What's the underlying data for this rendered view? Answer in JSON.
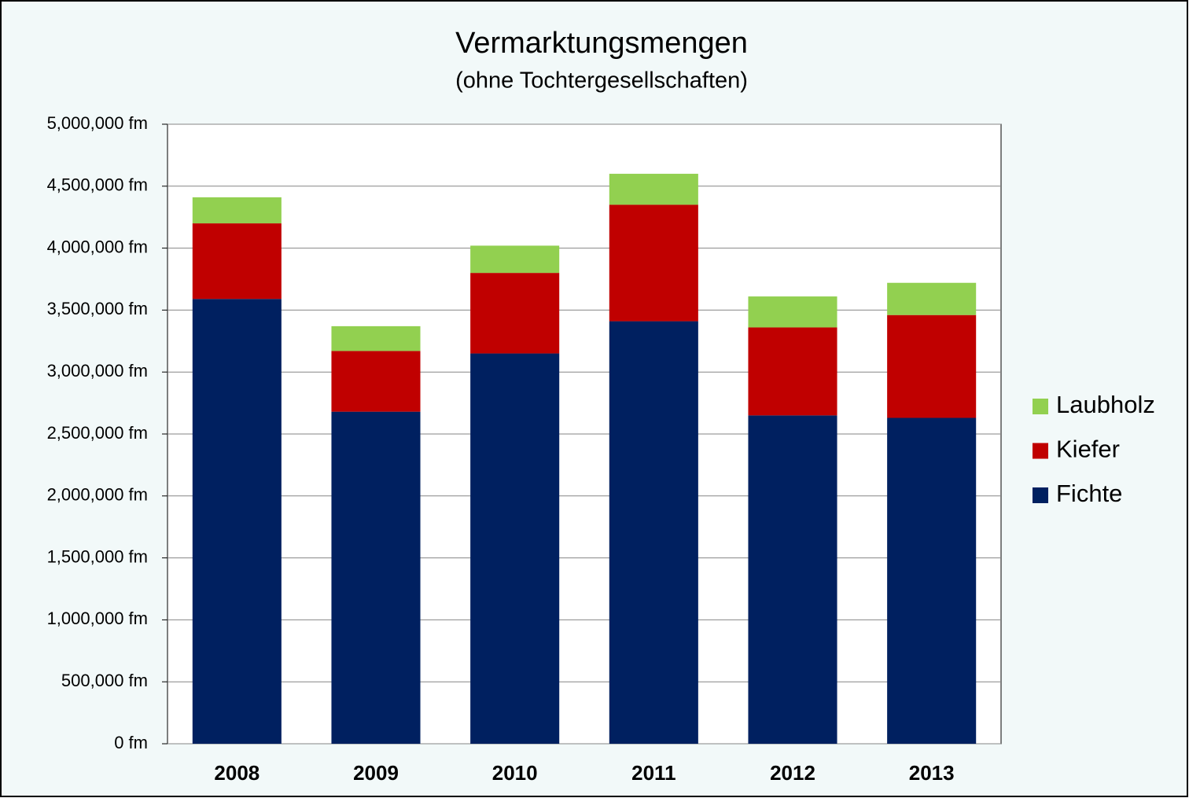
{
  "chart_data": {
    "type": "stacked_bar",
    "title": "Vermarktungsmengen",
    "subtitle": "(ohne Tochtergesellschaften)",
    "categories": [
      "2008",
      "2009",
      "2010",
      "2011",
      "2012",
      "2013"
    ],
    "series": [
      {
        "name": "Fichte",
        "color": "#002060",
        "values": [
          3590000,
          2680000,
          3150000,
          3410000,
          2650000,
          2630000
        ]
      },
      {
        "name": "Kiefer",
        "color": "#c00000",
        "values": [
          610000,
          490000,
          650000,
          940000,
          710000,
          830000
        ]
      },
      {
        "name": "Laubholz",
        "color": "#92d050",
        "values": [
          210000,
          200000,
          220000,
          250000,
          250000,
          260000
        ]
      }
    ],
    "ylim": [
      0,
      5000000
    ],
    "yticks": [
      {
        "value": 0,
        "label": "0 fm"
      },
      {
        "value": 500000,
        "label": "500,000 fm"
      },
      {
        "value": 1000000,
        "label": "1,000,000 fm"
      },
      {
        "value": 1500000,
        "label": "1,500,000 fm"
      },
      {
        "value": 2000000,
        "label": "2,000,000 fm"
      },
      {
        "value": 2500000,
        "label": "2,500,000 fm"
      },
      {
        "value": 3000000,
        "label": "3,000,000 fm"
      },
      {
        "value": 3500000,
        "label": "3,500,000 fm"
      },
      {
        "value": 4000000,
        "label": "4,000,000 fm"
      },
      {
        "value": 4500000,
        "label": "4,500,000 fm"
      },
      {
        "value": 5000000,
        "label": "5,000,000 fm"
      }
    ],
    "grid": true,
    "legend": "right"
  }
}
